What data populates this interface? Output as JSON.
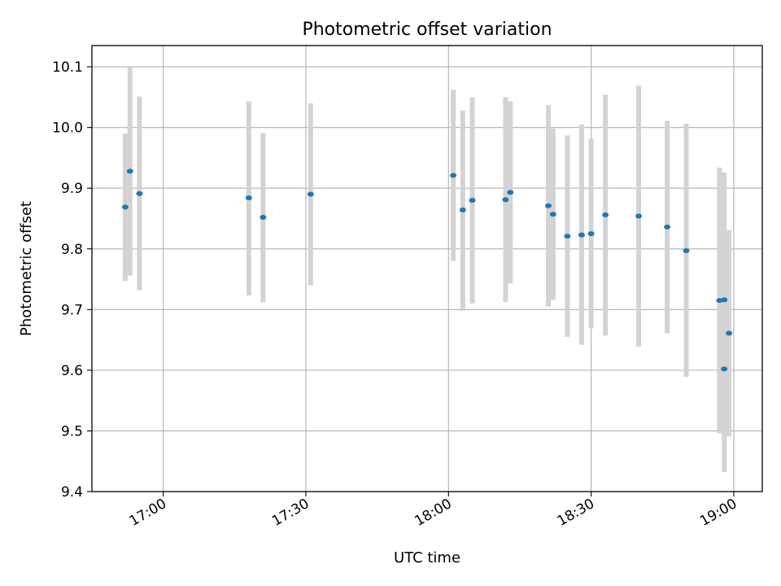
{
  "chart_data": {
    "type": "scatter",
    "title": "Photometric offset variation",
    "xlabel": "UTC time",
    "ylabel": "Photometric offset",
    "xlim": [
      "16:45",
      "19:06"
    ],
    "ylim": [
      9.4,
      10.135
    ],
    "x_ticks": [
      "17:00",
      "17:30",
      "18:00",
      "18:30",
      "19:00"
    ],
    "y_ticks": [
      "9.4",
      "9.5",
      "9.6",
      "9.7",
      "9.8",
      "9.9",
      "10.0",
      "10.1"
    ],
    "grid": true,
    "colors": {
      "point": "#1f77b4",
      "errorbar": "#d3d3d3",
      "grid": "#b0b0b0"
    },
    "points": [
      {
        "x": "16:52",
        "y": 9.869,
        "ylow": 9.747,
        "yhigh": 9.99
      },
      {
        "x": "16:53",
        "y": 9.928,
        "ylow": 9.756,
        "yhigh": 10.1
      },
      {
        "x": "16:55",
        "y": 9.891,
        "ylow": 9.732,
        "yhigh": 10.051
      },
      {
        "x": "17:18",
        "y": 9.884,
        "ylow": 9.723,
        "yhigh": 10.043
      },
      {
        "x": "17:21",
        "y": 9.852,
        "ylow": 9.712,
        "yhigh": 9.991
      },
      {
        "x": "17:31",
        "y": 9.89,
        "ylow": 9.74,
        "yhigh": 10.04
      },
      {
        "x": "18:01",
        "y": 9.921,
        "ylow": 9.78,
        "yhigh": 10.062
      },
      {
        "x": "18:03",
        "y": 9.864,
        "ylow": 9.698,
        "yhigh": 10.028
      },
      {
        "x": "18:05",
        "y": 9.88,
        "ylow": 9.71,
        "yhigh": 10.05
      },
      {
        "x": "18:12",
        "y": 9.881,
        "ylow": 9.712,
        "yhigh": 10.05
      },
      {
        "x": "18:13",
        "y": 9.893,
        "ylow": 9.743,
        "yhigh": 10.043
      },
      {
        "x": "18:21",
        "y": 9.871,
        "ylow": 9.705,
        "yhigh": 10.037
      },
      {
        "x": "18:22",
        "y": 9.857,
        "ylow": 9.716,
        "yhigh": 9.998
      },
      {
        "x": "18:25",
        "y": 9.821,
        "ylow": 9.655,
        "yhigh": 9.987
      },
      {
        "x": "18:28",
        "y": 9.823,
        "ylow": 9.642,
        "yhigh": 10.005
      },
      {
        "x": "18:30",
        "y": 9.825,
        "ylow": 9.669,
        "yhigh": 9.981
      },
      {
        "x": "18:33",
        "y": 9.856,
        "ylow": 9.657,
        "yhigh": 10.054
      },
      {
        "x": "18:40",
        "y": 9.854,
        "ylow": 9.639,
        "yhigh": 10.069
      },
      {
        "x": "18:46",
        "y": 9.836,
        "ylow": 9.661,
        "yhigh": 10.011
      },
      {
        "x": "18:50",
        "y": 9.797,
        "ylow": 9.589,
        "yhigh": 10.006
      },
      {
        "x": "18:57",
        "y": 9.715,
        "ylow": 9.496,
        "yhigh": 9.934
      },
      {
        "x": "18:58",
        "y": 9.716,
        "ylow": 9.505,
        "yhigh": 9.926
      },
      {
        "x": "18:58",
        "y": 9.602,
        "ylow": 9.432,
        "yhigh": 9.772
      },
      {
        "x": "18:59",
        "y": 9.661,
        "ylow": 9.491,
        "yhigh": 9.831
      }
    ]
  }
}
